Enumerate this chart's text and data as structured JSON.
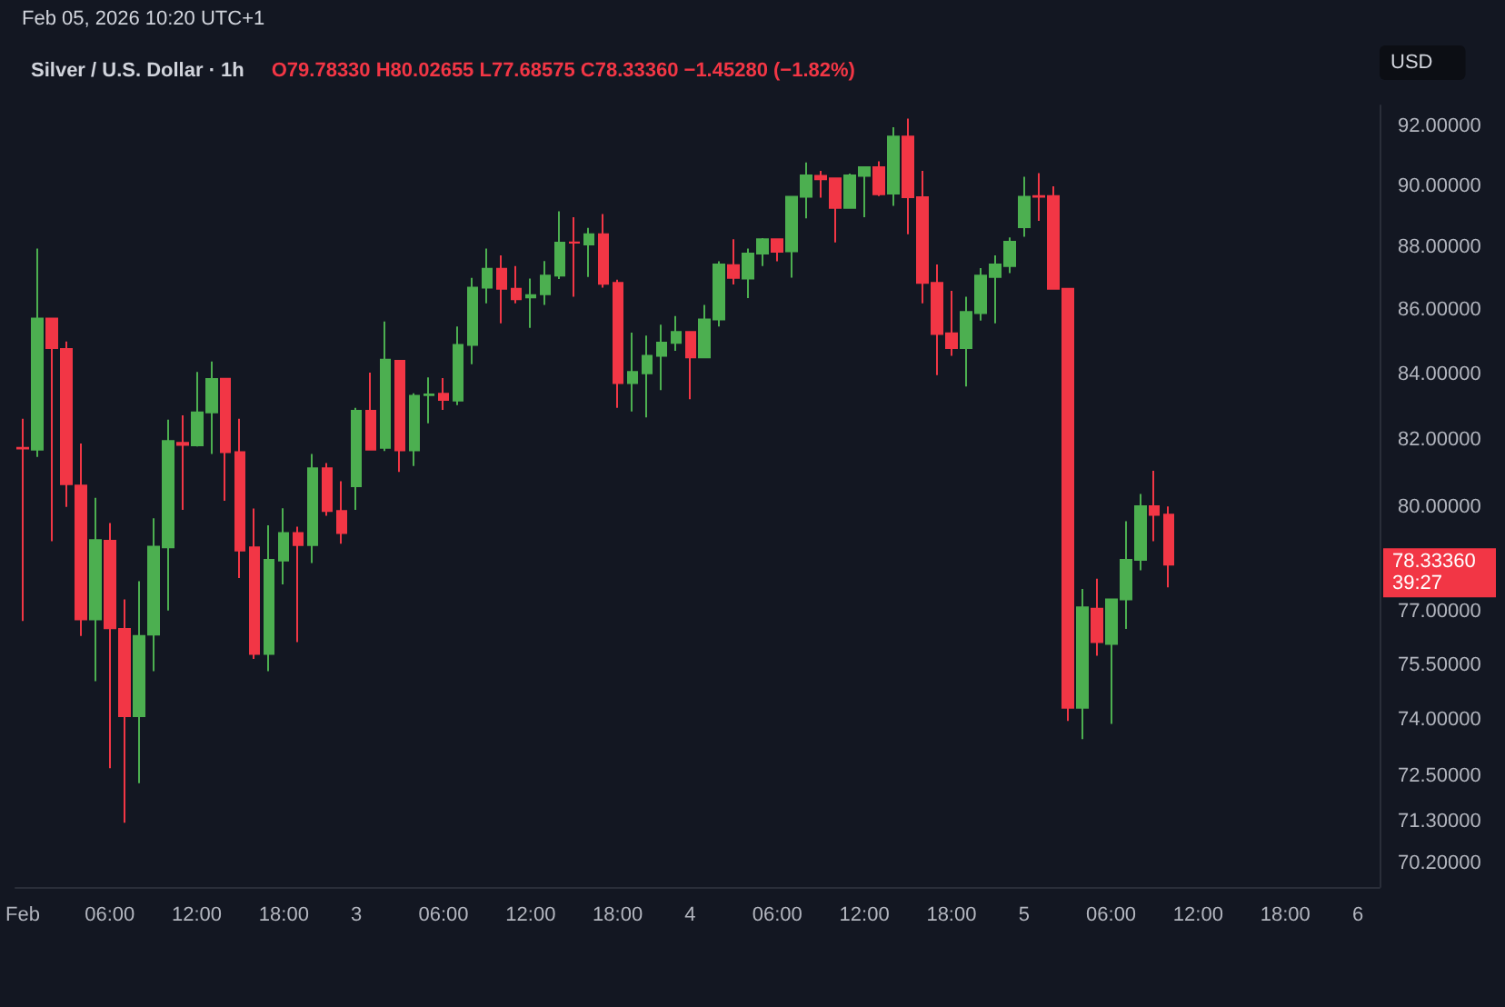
{
  "chart_data": {
    "type": "candlestick",
    "title": "Silver / U.S. Dollar · 1h",
    "subtitle": "O79.78330 H80.02655 L77.68575 C78.33360 −1.45280 (−1.82%)",
    "ylabel": "USD",
    "annotations": [
      "Feb 05, 2026 10:20 UTC+1",
      "78.33360",
      "39:27"
    ],
    "categories": [
      "Feb",
      null,
      null,
      null,
      null,
      null,
      "06:00",
      null,
      null,
      null,
      null,
      null,
      "12:00",
      null,
      null,
      null,
      null,
      null,
      "18:00",
      null,
      null,
      null,
      null,
      "3",
      null,
      null,
      null,
      null,
      null,
      "06:00",
      null,
      null,
      null,
      null,
      null,
      "12:00",
      null,
      null,
      null,
      null,
      null,
      "18:00",
      null,
      null,
      null,
      null,
      "4",
      null,
      null,
      null,
      null,
      null,
      "06:00",
      null,
      null,
      null,
      null,
      null,
      "12:00",
      null,
      null,
      null,
      null,
      null,
      "18:00",
      null,
      null,
      null,
      null,
      "5",
      null,
      null,
      null,
      null,
      null,
      "06:00",
      null,
      null,
      null,
      null,
      null,
      "12:00",
      null,
      null,
      null,
      null,
      null,
      "18:00",
      null,
      null,
      null,
      null,
      "6",
      null
    ],
    "ohlc": [
      [
        81.76,
        82.64,
        76.73,
        81.74
      ],
      [
        81.71,
        87.96,
        81.49,
        85.73
      ],
      [
        85.73,
        85.75,
        79.01,
        84.81
      ],
      [
        84.78,
        85.01,
        80.01,
        80.68
      ],
      [
        80.64,
        81.89,
        76.31,
        76.78
      ],
      [
        76.78,
        80.28,
        75.06,
        79.04
      ],
      [
        79.02,
        79.54,
        72.7,
        76.53
      ],
      [
        76.51,
        77.34,
        71.26,
        74.1
      ],
      [
        74.1,
        77.86,
        72.3,
        76.31
      ],
      [
        76.35,
        79.68,
        75.33,
        78.85
      ],
      [
        78.83,
        82.61,
        77.03,
        81.97
      ],
      [
        81.91,
        82.74,
        79.92,
        81.85
      ],
      [
        81.84,
        84.07,
        81.8,
        82.83
      ],
      [
        82.83,
        84.39,
        81.58,
        83.85
      ],
      [
        83.86,
        83.88,
        80.19,
        81.63
      ],
      [
        81.63,
        82.64,
        77.95,
        78.74
      ],
      [
        78.83,
        79.96,
        75.67,
        75.81
      ],
      [
        75.81,
        79.47,
        75.33,
        78.47
      ],
      [
        78.45,
        79.97,
        77.77,
        79.25
      ],
      [
        79.25,
        79.43,
        76.14,
        78.9
      ],
      [
        78.9,
        81.58,
        78.38,
        81.15
      ],
      [
        81.15,
        81.31,
        79.75,
        79.89
      ],
      [
        79.89,
        80.77,
        78.94,
        79.25
      ],
      [
        80.62,
        82.97,
        79.92,
        82.88
      ],
      [
        82.88,
        84.05,
        81.71,
        81.71
      ],
      [
        81.76,
        85.64,
        81.67,
        84.45
      ],
      [
        84.41,
        84.43,
        81.04,
        81.69
      ],
      [
        81.69,
        83.41,
        81.22,
        83.34
      ],
      [
        83.36,
        83.9,
        82.5,
        83.38
      ],
      [
        83.4,
        83.88,
        82.91,
        83.21
      ],
      [
        83.19,
        85.48,
        83.05,
        84.91
      ],
      [
        84.91,
        87.02,
        84.31,
        86.71
      ],
      [
        86.71,
        87.96,
        86.21,
        87.31
      ],
      [
        87.31,
        87.74,
        85.58,
        86.67
      ],
      [
        86.67,
        87.4,
        86.21,
        86.34
      ],
      [
        86.4,
        87.0,
        85.44,
        86.47
      ],
      [
        86.5,
        87.56,
        86.16,
        87.09
      ],
      [
        87.09,
        89.17,
        86.98,
        88.15
      ],
      [
        88.16,
        88.98,
        86.42,
        88.15
      ],
      [
        88.09,
        88.63,
        87.05,
        88.42
      ],
      [
        88.42,
        89.08,
        86.71,
        86.83
      ],
      [
        86.86,
        86.96,
        82.97,
        83.73
      ],
      [
        83.73,
        85.29,
        82.86,
        84.07
      ],
      [
        84.03,
        85.2,
        82.68,
        84.57
      ],
      [
        84.57,
        85.54,
        83.51,
        84.98
      ],
      [
        84.97,
        85.81,
        84.72,
        85.31
      ],
      [
        85.31,
        85.33,
        83.23,
        84.52
      ],
      [
        84.52,
        86.16,
        84.5,
        85.7
      ],
      [
        85.7,
        87.55,
        85.48,
        87.45
      ],
      [
        87.43,
        88.26,
        86.81,
        87.02
      ],
      [
        87.0,
        87.96,
        86.38,
        87.8
      ],
      [
        87.8,
        88.3,
        87.4,
        88.26
      ],
      [
        88.26,
        88.28,
        87.55,
        87.86
      ],
      [
        87.87,
        89.67,
        87.03,
        89.65
      ],
      [
        89.65,
        90.78,
        88.94,
        90.35
      ],
      [
        90.34,
        90.5,
        89.62,
        90.22
      ],
      [
        90.25,
        90.27,
        88.16,
        89.28
      ],
      [
        89.28,
        90.41,
        89.26,
        90.35
      ],
      [
        90.34,
        90.64,
        88.98,
        90.62
      ],
      [
        90.62,
        90.82,
        89.67,
        89.73
      ],
      [
        89.75,
        91.96,
        89.35,
        91.65
      ],
      [
        91.65,
        92.25,
        88.42,
        89.63
      ],
      [
        89.63,
        90.5,
        86.21,
        86.86
      ],
      [
        86.86,
        87.45,
        83.97,
        85.25
      ],
      [
        85.27,
        86.61,
        84.57,
        84.81
      ],
      [
        84.81,
        86.42,
        83.62,
        85.94
      ],
      [
        85.9,
        87.33,
        85.67,
        87.09
      ],
      [
        87.05,
        87.74,
        85.58,
        87.45
      ],
      [
        87.4,
        88.32,
        87.17,
        88.18
      ],
      [
        88.65,
        90.31,
        88.34,
        89.65
      ],
      [
        89.67,
        90.43,
        88.86,
        89.65
      ],
      [
        89.67,
        89.99,
        86.65,
        86.67
      ],
      [
        86.67,
        86.69,
        73.97,
        74.33
      ],
      [
        74.33,
        77.64,
        73.48,
        77.12
      ],
      [
        77.08,
        77.93,
        75.76,
        76.14
      ],
      [
        76.09,
        77.36,
        73.89,
        77.34
      ],
      [
        77.34,
        79.59,
        76.51,
        78.47
      ],
      [
        78.47,
        80.39,
        78.17,
        80.03
      ],
      [
        80.03,
        81.08,
        79.01,
        79.78
      ],
      [
        79.7833,
        80.02655,
        77.68575,
        78.3336
      ],
      null,
      null,
      null,
      null,
      null,
      null,
      null,
      null,
      null,
      null,
      null,
      null,
      null,
      null
    ],
    "colors": [
      "#f23645",
      "#4caf50",
      "#f23645",
      "#f23645",
      "#f23645",
      "#4caf50",
      "#f23645",
      "#f23645",
      "#4caf50",
      "#4caf50",
      "#4caf50",
      "#f23645",
      "#4caf50",
      "#4caf50",
      "#f23645",
      "#f23645",
      "#f23645",
      "#4caf50",
      "#4caf50",
      "#f23645",
      "#4caf50",
      "#f23645",
      "#f23645",
      "#4caf50",
      "#f23645",
      "#4caf50",
      "#f23645",
      "#4caf50",
      "#4caf50",
      "#f23645",
      "#4caf50",
      "#4caf50",
      "#4caf50",
      "#f23645",
      "#f23645",
      "#4caf50",
      "#4caf50",
      "#4caf50",
      "#f23645",
      "#4caf50",
      "#f23645",
      "#f23645",
      "#4caf50",
      "#4caf50",
      "#4caf50",
      "#4caf50",
      "#f23645",
      "#4caf50",
      "#4caf50",
      "#f23645",
      "#4caf50",
      "#4caf50",
      "#f23645",
      "#4caf50",
      "#4caf50",
      "#f23645",
      "#f23645",
      "#4caf50",
      "#4caf50",
      "#f23645",
      "#4caf50",
      "#f23645",
      "#f23645",
      "#f23645",
      "#f23645",
      "#4caf50",
      "#4caf50",
      "#4caf50",
      "#4caf50",
      "#4caf50",
      "#f23645",
      "#f23645",
      "#f23645",
      "#4caf50",
      "#f23645",
      "#4caf50",
      "#4caf50",
      "#4caf50",
      "#f23645",
      "#f23645",
      null,
      null,
      null,
      null,
      null,
      null,
      null,
      null,
      null,
      null,
      null,
      null,
      null,
      null
    ],
    "log": true,
    "ylim": [
      69.6,
      92.7
    ],
    "yticks": [
      {
        "value": 70.2,
        "label": "70.20000"
      },
      {
        "value": 71.3,
        "label": "71.30000"
      },
      {
        "value": 72.5,
        "label": "72.50000"
      },
      {
        "value": 74,
        "label": "74.00000"
      },
      {
        "value": 75.5,
        "label": "75.50000"
      },
      {
        "value": 77,
        "label": "77.00000"
      },
      {
        "value": 80,
        "label": "80.00000"
      },
      {
        "value": 82,
        "label": "82.00000"
      },
      {
        "value": 84,
        "label": "84.00000"
      },
      {
        "value": 86,
        "label": "86.00000"
      },
      {
        "value": 88,
        "label": "88.00000"
      },
      {
        "value": 90,
        "label": "90.00000"
      },
      {
        "value": 92,
        "label": "92.00000"
      }
    ]
  }
}
